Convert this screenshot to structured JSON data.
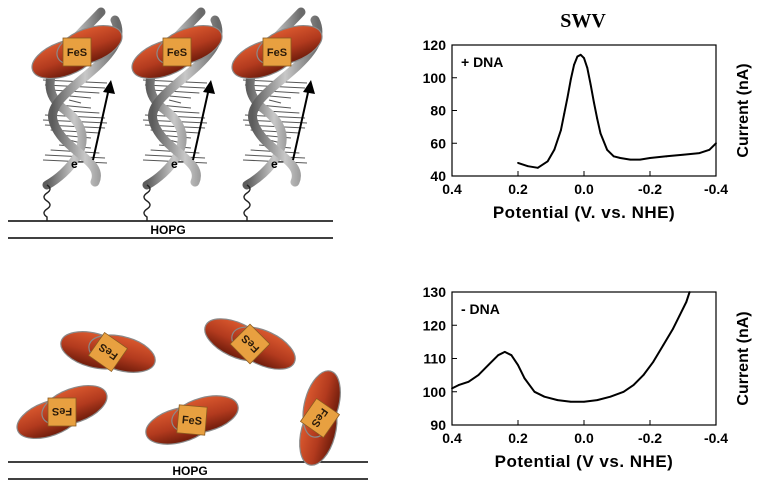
{
  "figure_title": "SWV",
  "substrate_label": "HOPG",
  "cluster_label": "FeS",
  "electron_label": "e⁻",
  "colors": {
    "protein_fill": "#b23a1e",
    "protein_dark": "#7a1f0d",
    "cluster_fill": "#e8a040",
    "dna_strand": "#8c8c8c",
    "trace": "#000000"
  },
  "chart_data": [
    {
      "type": "line",
      "annotation": "+ DNA",
      "xlabel": "Potential (V. vs. NHE)",
      "ylabel": "Current (nA)",
      "xlim": [
        0.4,
        -0.4
      ],
      "ylim": [
        40,
        120
      ],
      "x_ticks": [
        "0.4",
        "0.2",
        "0.0",
        "-0.2",
        "-0.4"
      ],
      "y_ticks": [
        "40",
        "60",
        "80",
        "100",
        "120"
      ],
      "grid": false,
      "series": [
        {
          "x": [
            0.2,
            0.17,
            0.14,
            0.11,
            0.09,
            0.07,
            0.06,
            0.05,
            0.04,
            0.03,
            0.02,
            0.01,
            0.0,
            -0.01,
            -0.02,
            -0.03,
            -0.04,
            -0.05,
            -0.07,
            -0.09,
            -0.11,
            -0.14,
            -0.17,
            -0.2,
            -0.25,
            -0.3,
            -0.35,
            -0.38,
            -0.4
          ],
          "y": [
            48,
            46,
            45,
            49,
            56,
            68,
            78,
            88,
            99,
            108,
            113,
            114,
            112,
            106,
            96,
            85,
            75,
            66,
            56,
            52,
            51,
            50,
            50,
            51,
            52,
            53,
            54,
            56,
            60
          ]
        }
      ]
    },
    {
      "type": "line",
      "annotation": "- DNA",
      "xlabel": "Potential (V vs. NHE)",
      "ylabel": "Current (nA)",
      "xlim": [
        0.4,
        -0.4
      ],
      "ylim": [
        90,
        130
      ],
      "x_ticks": [
        "0.4",
        "0.2",
        "0.0",
        "-0.2",
        "-0.4"
      ],
      "y_ticks": [
        "90",
        "100",
        "110",
        "120",
        "130"
      ],
      "grid": false,
      "series": [
        {
          "x": [
            0.4,
            0.38,
            0.35,
            0.32,
            0.29,
            0.26,
            0.24,
            0.22,
            0.2,
            0.18,
            0.15,
            0.12,
            0.08,
            0.04,
            0.0,
            -0.04,
            -0.08,
            -0.12,
            -0.15,
            -0.18,
            -0.21,
            -0.24,
            -0.27,
            -0.29,
            -0.31,
            -0.32
          ],
          "y": [
            101,
            102,
            103,
            105,
            108,
            111,
            112,
            111,
            108,
            104,
            100,
            98.5,
            97.5,
            97,
            97,
            97.5,
            98.5,
            100,
            102,
            105,
            109,
            114,
            119,
            123,
            127,
            130
          ]
        }
      ]
    }
  ]
}
